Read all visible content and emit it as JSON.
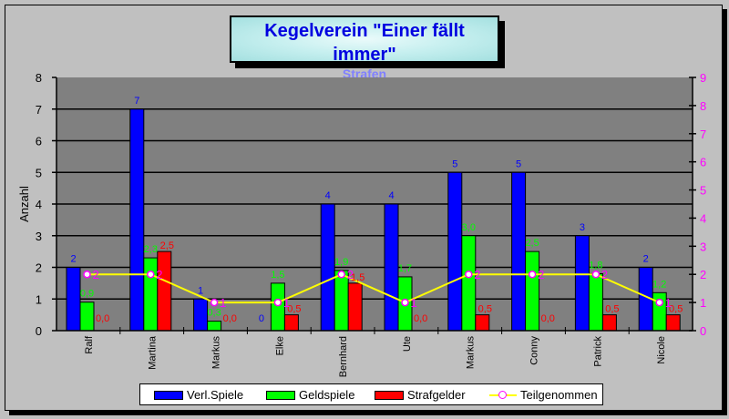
{
  "title": "Kegelverein \"Einer fällt immer\"",
  "subtitle": "Strafen",
  "y_axis_left_label": "Anzahl",
  "colors": {
    "verl_spiele": "#0000ff",
    "geldspiele": "#00ff00",
    "strafgelder": "#ff0000",
    "teilgenommen_line": "#ffff00",
    "teilgenommen_marker": "#ff00ff",
    "plot_bg": "#808080",
    "chart_bg": "#c0c0c0",
    "title_color": "#0000e0",
    "subtitle_color": "#8080ff"
  },
  "legend": {
    "verl_spiele": "Verl.Spiele",
    "geldspiele": "Geldspiele",
    "strafgelder": "Strafgelder",
    "teilgenommen": "Teilgenommen"
  },
  "chart_data": {
    "type": "bar",
    "title": "Kegelverein \"Einer fällt immer\"",
    "subtitle": "Strafen",
    "xlabel": "",
    "ylabel": "Anzahl",
    "ylim": [
      0,
      8
    ],
    "y2lim": [
      0,
      9
    ],
    "yticks": [
      0,
      1,
      2,
      3,
      4,
      5,
      6,
      7,
      8
    ],
    "y2ticks": [
      0,
      1,
      2,
      3,
      4,
      5,
      6,
      7,
      8,
      9
    ],
    "grid": true,
    "legend_position": "bottom",
    "categories": [
      "Ralf",
      "Martina",
      "Markus",
      "Elke",
      "Bernhard",
      "Ute",
      "Markus",
      "Conny",
      "Patrick",
      "Nicole"
    ],
    "series": [
      {
        "name": "Verl.Spiele",
        "type": "bar",
        "axis": "left",
        "values": [
          2,
          7,
          1,
          0,
          4,
          4,
          5,
          5,
          3,
          2
        ],
        "labels": [
          "2",
          "7",
          "1",
          "0",
          "4",
          "4",
          "5",
          "5",
          "3",
          "2"
        ]
      },
      {
        "name": "Geldspiele",
        "type": "bar",
        "axis": "left",
        "values": [
          0.9,
          2.3,
          0.3,
          1.5,
          1.9,
          1.7,
          3.0,
          2.5,
          1.8,
          1.2
        ],
        "labels": [
          "0,9",
          "2,3",
          "0,3",
          "1,5",
          "1,9",
          "1,7",
          "3,0",
          "2,5",
          "1,8",
          "1,2"
        ]
      },
      {
        "name": "Strafgelder",
        "type": "bar",
        "axis": "left",
        "values": [
          0.0,
          2.5,
          0.0,
          0.5,
          1.5,
          0.0,
          0.5,
          0.0,
          0.5,
          0.5
        ],
        "labels": [
          "0,0",
          "2,5",
          "0,0",
          "0,5",
          "1,5",
          "0,0",
          "0,5",
          "0,0",
          "0,5",
          "0,5"
        ]
      },
      {
        "name": "Teilgenommen",
        "type": "line",
        "axis": "right",
        "values": [
          2,
          2,
          1,
          1,
          2,
          1,
          2,
          2,
          2,
          1
        ],
        "labels": [
          "2",
          "2",
          "1",
          "1",
          "2",
          "1",
          "2",
          "2",
          "2",
          "1"
        ]
      }
    ]
  }
}
